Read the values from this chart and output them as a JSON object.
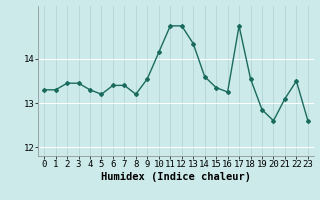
{
  "x": [
    0,
    1,
    2,
    3,
    4,
    5,
    6,
    7,
    8,
    9,
    10,
    11,
    12,
    13,
    14,
    15,
    16,
    17,
    18,
    19,
    20,
    21,
    22,
    23
  ],
  "y": [
    13.3,
    13.3,
    13.45,
    13.45,
    13.3,
    13.2,
    13.4,
    13.4,
    13.2,
    13.55,
    14.15,
    14.75,
    14.75,
    14.35,
    13.6,
    13.35,
    13.25,
    14.75,
    13.55,
    12.85,
    12.6,
    13.1,
    13.5,
    12.6
  ],
  "xlabel": "Humidex (Indice chaleur)",
  "ylim": [
    11.8,
    15.2
  ],
  "xlim": [
    -0.5,
    23.5
  ],
  "yticks": [
    12,
    13,
    14
  ],
  "xticks": [
    0,
    1,
    2,
    3,
    4,
    5,
    6,
    7,
    8,
    9,
    10,
    11,
    12,
    13,
    14,
    15,
    16,
    17,
    18,
    19,
    20,
    21,
    22,
    23
  ],
  "line_color": "#1a6b5e",
  "marker": "D",
  "marker_size": 2.0,
  "line_width": 1.0,
  "bg_color": "#cceaea",
  "grid_h_color": "#ffffff",
  "grid_v_color": "#b8d8d8",
  "xlabel_fontsize": 7.5,
  "tick_fontsize": 6.5
}
